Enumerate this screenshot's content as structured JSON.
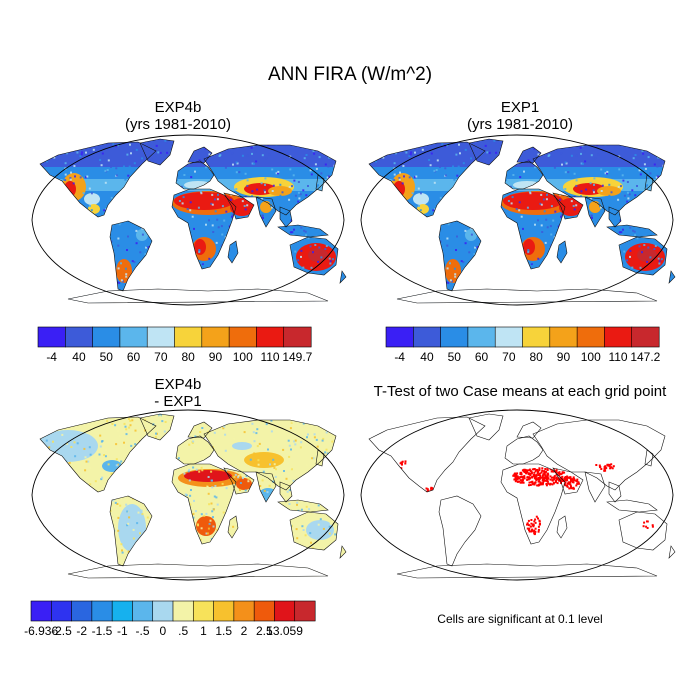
{
  "title": "ANN FIRA (W/m^2)",
  "panels": {
    "top_left": {
      "title_line1": "EXP4b",
      "title_line2": "(yrs 1981-2010)"
    },
    "top_right": {
      "title_line1": "EXP1",
      "title_line2": "(yrs 1981-2010)"
    },
    "bottom_left": {
      "title_line1": "EXP4b",
      "title_line2": "- EXP1"
    },
    "bottom_right": {
      "title_line1": "T-Test of two Case means at each grid point",
      "note": "Cells are significant at 0.1 level"
    }
  },
  "colorbars": {
    "top_left": {
      "labels": [
        "-4",
        "40",
        "50",
        "60",
        "70",
        "80",
        "90",
        "100",
        "110",
        "149.7"
      ],
      "colors": [
        "#3a1ff5",
        "#3d5bd9",
        "#2a8de6",
        "#5bb6ec",
        "#bfe4f4",
        "#f7d33a",
        "#f4a21a",
        "#ef6d0c",
        "#ea1a12",
        "#c8282d"
      ]
    },
    "top_right": {
      "labels": [
        "-4",
        "40",
        "50",
        "60",
        "70",
        "80",
        "90",
        "100",
        "110",
        "147.2"
      ],
      "colors": [
        "#3a1ff5",
        "#3d5bd9",
        "#2a8de6",
        "#5bb6ec",
        "#bfe4f4",
        "#f7d33a",
        "#f4a21a",
        "#ef6d0c",
        "#ea1a12",
        "#c8282d"
      ]
    },
    "bottom_left": {
      "labels": [
        "-6.936",
        "-2.5",
        "-2",
        "-1.5",
        "-1",
        "-.5",
        "0",
        ".5",
        "1",
        "1.5",
        "2",
        "2.5",
        "13.059"
      ],
      "colors": [
        "#3a1ff5",
        "#2e33f0",
        "#2a66e0",
        "#2a8de6",
        "#16b1ee",
        "#5bb6ec",
        "#a9d8ef",
        "#f3f3a8",
        "#f7e25a",
        "#f7c12e",
        "#f4901a",
        "#ef5a0c",
        "#e0141a",
        "#c8282d"
      ]
    }
  }
}
